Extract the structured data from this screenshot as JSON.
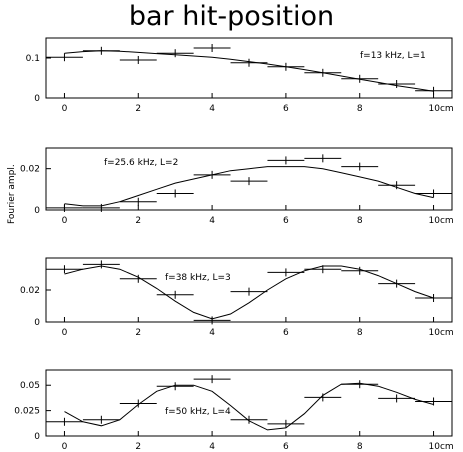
{
  "title": "bar hit-position",
  "ylabel": "Fourier ampl.",
  "chart_data": [
    {
      "type": "scatter",
      "annotation": "f=13 kHz, L=1",
      "xlim": [
        -0.5,
        10.5
      ],
      "ylim": [
        0,
        0.15
      ],
      "yticks": [
        {
          "value": 0,
          "label": "0"
        },
        {
          "value": 0.1,
          "label": "0.1"
        }
      ],
      "xticks": [
        {
          "value": 0,
          "label": "0"
        },
        {
          "value": 2,
          "label": "2"
        },
        {
          "value": 4,
          "label": "4"
        },
        {
          "value": 6,
          "label": "6"
        },
        {
          "value": 8,
          "label": "8"
        },
        {
          "value": 10,
          "label": "10cm"
        }
      ],
      "series": [
        {
          "kind": "points",
          "x": [
            0,
            1,
            2,
            3,
            4,
            5,
            6,
            7,
            8,
            9,
            10
          ],
          "y": [
            0.102,
            0.118,
            0.095,
            0.112,
            0.125,
            0.088,
            0.078,
            0.063,
            0.048,
            0.035,
            0.018
          ],
          "xerr": 0.5
        },
        {
          "kind": "curve",
          "x": [
            0,
            0.5,
            1,
            1.5,
            2,
            2.5,
            3,
            3.5,
            4,
            4.5,
            5,
            5.5,
            6,
            6.5,
            7,
            7.5,
            8,
            8.5,
            9,
            9.5,
            10
          ],
          "y": [
            0.112,
            0.116,
            0.118,
            0.117,
            0.114,
            0.111,
            0.108,
            0.105,
            0.102,
            0.097,
            0.091,
            0.085,
            0.078,
            0.071,
            0.063,
            0.055,
            0.047,
            0.039,
            0.031,
            0.024,
            0.017
          ]
        }
      ]
    },
    {
      "type": "scatter",
      "annotation": "f=25.6 kHz, L=2",
      "xlim": [
        -0.5,
        10.5
      ],
      "ylim": [
        0,
        0.03
      ],
      "yticks": [
        {
          "value": 0,
          "label": "0"
        },
        {
          "value": 0.02,
          "label": "0.02"
        }
      ],
      "xticks": [
        {
          "value": 0,
          "label": "0"
        },
        {
          "value": 2,
          "label": "2"
        },
        {
          "value": 4,
          "label": "4"
        },
        {
          "value": 6,
          "label": "6"
        },
        {
          "value": 8,
          "label": "8"
        },
        {
          "value": 10,
          "label": "10cm"
        }
      ],
      "series": [
        {
          "kind": "points",
          "x": [
            0,
            1,
            2,
            3,
            4,
            5,
            6,
            7,
            8,
            9,
            10
          ],
          "y": [
            0.001,
            0.001,
            0.004,
            0.008,
            0.017,
            0.014,
            0.024,
            0.025,
            0.021,
            0.012,
            0.008
          ],
          "xerr": 0.5
        },
        {
          "kind": "curve",
          "x": [
            0,
            0.5,
            1,
            1.5,
            2,
            2.5,
            3,
            3.5,
            4,
            4.5,
            5,
            5.5,
            6,
            6.5,
            7,
            7.5,
            8,
            8.5,
            9,
            9.5,
            10
          ],
          "y": [
            0.003,
            0.002,
            0.002,
            0.004,
            0.007,
            0.01,
            0.013,
            0.015,
            0.017,
            0.019,
            0.02,
            0.021,
            0.021,
            0.021,
            0.02,
            0.018,
            0.016,
            0.014,
            0.011,
            0.008,
            0.006
          ]
        }
      ]
    },
    {
      "type": "scatter",
      "annotation": "f=38 kHz, L=3",
      "xlim": [
        -0.5,
        10.5
      ],
      "ylim": [
        0,
        0.04
      ],
      "yticks": [
        {
          "value": 0,
          "label": "0"
        },
        {
          "value": 0.02,
          "label": "0.02"
        }
      ],
      "xticks": [
        {
          "value": 0,
          "label": "0"
        },
        {
          "value": 2,
          "label": "2"
        },
        {
          "value": 4,
          "label": "4"
        },
        {
          "value": 6,
          "label": "6"
        },
        {
          "value": 8,
          "label": "8"
        },
        {
          "value": 10,
          "label": "10cm"
        }
      ],
      "series": [
        {
          "kind": "points",
          "x": [
            0,
            1,
            2,
            3,
            4,
            5,
            6,
            7,
            8,
            9,
            10
          ],
          "y": [
            0.033,
            0.036,
            0.027,
            0.017,
            0.001,
            0.019,
            0.031,
            0.033,
            0.032,
            0.024,
            0.015
          ],
          "xerr": 0.5
        },
        {
          "kind": "curve",
          "x": [
            0,
            0.5,
            1,
            1.5,
            2,
            2.5,
            3,
            3.5,
            4,
            4.5,
            5,
            5.5,
            6,
            6.5,
            7,
            7.5,
            8,
            8.5,
            9,
            9.5,
            10
          ],
          "y": [
            0.03,
            0.033,
            0.035,
            0.033,
            0.028,
            0.021,
            0.013,
            0.006,
            0.002,
            0.005,
            0.012,
            0.02,
            0.027,
            0.032,
            0.035,
            0.035,
            0.033,
            0.029,
            0.024,
            0.019,
            0.015
          ]
        }
      ]
    },
    {
      "type": "scatter",
      "annotation": "f=50 kHz, L=4",
      "xlim": [
        -0.5,
        10.5
      ],
      "ylim": [
        0,
        0.065
      ],
      "yticks": [
        {
          "value": 0,
          "label": "0"
        },
        {
          "value": 0.025,
          "label": "0.025"
        },
        {
          "value": 0.05,
          "label": "0.05"
        }
      ],
      "xticks": [
        {
          "value": 0,
          "label": "0"
        },
        {
          "value": 2,
          "label": "2"
        },
        {
          "value": 4,
          "label": "4"
        },
        {
          "value": 6,
          "label": "6"
        },
        {
          "value": 8,
          "label": "8"
        },
        {
          "value": 10,
          "label": "10cm"
        }
      ],
      "series": [
        {
          "kind": "points",
          "x": [
            0,
            1,
            2,
            3,
            4,
            5,
            6,
            7,
            8,
            9,
            10
          ],
          "y": [
            0.014,
            0.016,
            0.032,
            0.049,
            0.056,
            0.016,
            0.012,
            0.038,
            0.051,
            0.037,
            0.034
          ],
          "xerr": 0.5
        },
        {
          "kind": "curve",
          "x": [
            0,
            0.5,
            1,
            1.5,
            2,
            2.5,
            3,
            3.5,
            4,
            4.5,
            5,
            5.5,
            6,
            6.5,
            7,
            7.5,
            8,
            8.5,
            9,
            9.5,
            10
          ],
          "y": [
            0.024,
            0.014,
            0.01,
            0.016,
            0.031,
            0.044,
            0.05,
            0.05,
            0.044,
            0.03,
            0.015,
            0.006,
            0.008,
            0.022,
            0.04,
            0.051,
            0.052,
            0.049,
            0.043,
            0.036,
            0.031
          ]
        }
      ]
    }
  ]
}
